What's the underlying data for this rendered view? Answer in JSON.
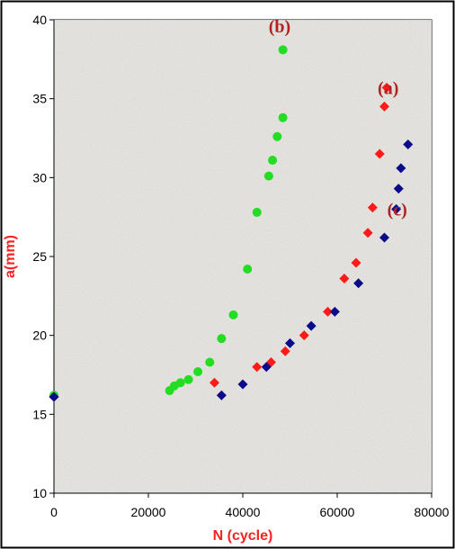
{
  "chart_data": {
    "type": "scatter",
    "xlabel": "N (cycle)",
    "ylabel": "a(mm)",
    "xlim": [
      0,
      80000
    ],
    "ylim": [
      10,
      40
    ],
    "x_ticks": [
      "0",
      "20000",
      "40000",
      "60000",
      "80000"
    ],
    "y_ticks": [
      "10",
      "15",
      "20",
      "25",
      "30",
      "35",
      "40"
    ],
    "grid": false,
    "legend": "none",
    "annotations": [
      {
        "text": "(a)",
        "x": 70800,
        "y": 35.7
      },
      {
        "text": "(b)",
        "x": 47800,
        "y": 39.6
      },
      {
        "text": "(c)",
        "x": 72700,
        "y": 28.0
      }
    ],
    "series": [
      {
        "name": "(a)",
        "marker": "diamond",
        "color": "#ff1a1a",
        "points": [
          [
            0,
            16.1
          ],
          [
            34000,
            17.0
          ],
          [
            43000,
            18.0
          ],
          [
            46000,
            18.3
          ],
          [
            49000,
            19.0
          ],
          [
            53000,
            20.0
          ],
          [
            58000,
            21.5
          ],
          [
            61500,
            23.6
          ],
          [
            64000,
            24.6
          ],
          [
            66500,
            26.5
          ],
          [
            67500,
            28.1
          ],
          [
            69000,
            31.5
          ],
          [
            70000,
            34.5
          ],
          [
            70500,
            35.7
          ]
        ]
      },
      {
        "name": "(b)",
        "marker": "circle",
        "color": "#22dd22",
        "points": [
          [
            0,
            16.2
          ],
          [
            24500,
            16.5
          ],
          [
            25500,
            16.8
          ],
          [
            26800,
            17.0
          ],
          [
            28500,
            17.2
          ],
          [
            30500,
            17.7
          ],
          [
            33000,
            18.3
          ],
          [
            35500,
            19.8
          ],
          [
            38000,
            21.3
          ],
          [
            41000,
            24.2
          ],
          [
            43000,
            27.8
          ],
          [
            45500,
            30.1
          ],
          [
            46300,
            31.1
          ],
          [
            47300,
            32.6
          ],
          [
            48500,
            33.8
          ],
          [
            48500,
            38.1
          ]
        ]
      },
      {
        "name": "(c)",
        "marker": "diamond",
        "color": "#0a0a8a",
        "points": [
          [
            0,
            16.1
          ],
          [
            35500,
            16.2
          ],
          [
            40000,
            16.9
          ],
          [
            45000,
            18.0
          ],
          [
            50000,
            19.5
          ],
          [
            54500,
            20.6
          ],
          [
            59500,
            21.5
          ],
          [
            64500,
            23.3
          ],
          [
            70000,
            26.2
          ],
          [
            72500,
            28.0
          ],
          [
            73000,
            29.3
          ],
          [
            73500,
            30.6
          ],
          [
            75000,
            32.1
          ]
        ]
      }
    ],
    "colors": {
      "background": "#ffffff",
      "plot_area": "#e5e4df",
      "axis_title": "#ff2020",
      "annotation": "#b22222"
    }
  }
}
